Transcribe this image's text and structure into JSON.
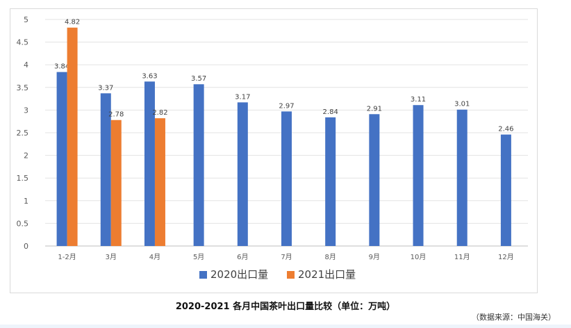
{
  "caption": "2020-2021 各月中国茶叶出口量比较（单位：万吨）",
  "source": "（数据来源：中国海关）",
  "chart_data": {
    "type": "bar",
    "categories": [
      "1-2月",
      "3月",
      "4月",
      "5月",
      "6月",
      "7月",
      "8月",
      "9月",
      "10月",
      "11月",
      "12月"
    ],
    "series": [
      {
        "name": "2020出口量",
        "color": "#4472c4",
        "values": [
          3.84,
          3.37,
          3.63,
          3.57,
          3.17,
          2.97,
          2.84,
          2.91,
          3.11,
          3.01,
          2.46
        ]
      },
      {
        "name": "2021出口量",
        "color": "#ed7d31",
        "values": [
          4.82,
          2.78,
          2.82,
          null,
          null,
          null,
          null,
          null,
          null,
          null,
          null
        ]
      }
    ],
    "y_ticks": [
      "0",
      "0.5",
      "1",
      "1.5",
      "2",
      "2.5",
      "3",
      "3.5",
      "4",
      "4.5",
      "5"
    ],
    "ylim": [
      0,
      5
    ],
    "grid": true,
    "legend_position": "bottom"
  }
}
